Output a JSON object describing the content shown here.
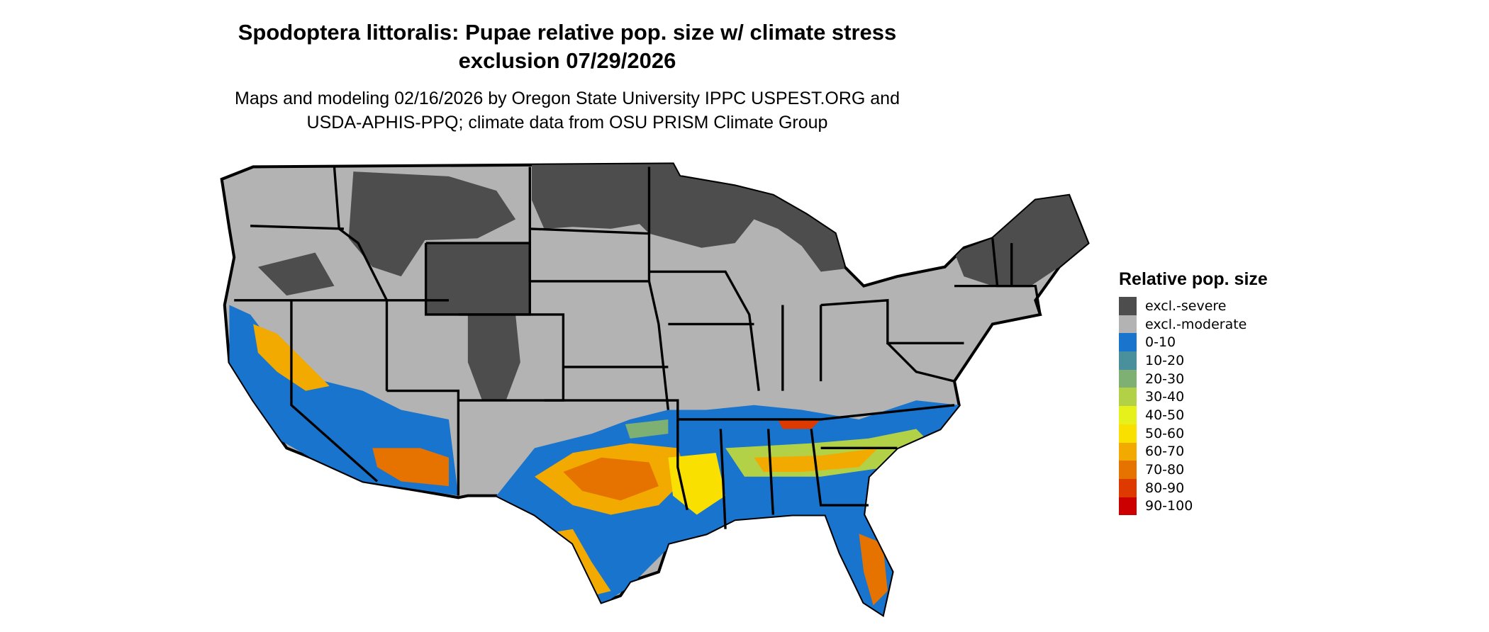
{
  "title_line1": "Spodoptera littoralis: Pupae relative pop. size w/ climate stress",
  "title_line2": "exclusion 07/29/2026",
  "subtitle_line1": "Maps and modeling 02/16/2026 by Oregon State University IPPC USPEST.ORG and",
  "subtitle_line2": "USDA-APHIS-PPQ; climate data from OSU PRISM Climate Group",
  "legend": {
    "title": "Relative pop. size",
    "items": [
      {
        "label": "excl.-severe",
        "color": "#4d4d4d"
      },
      {
        "label": "excl.-moderate",
        "color": "#b3b3b3"
      },
      {
        "label": "0-10",
        "color": "#1874cd"
      },
      {
        "label": "10-20",
        "color": "#4a8f9c"
      },
      {
        "label": "20-30",
        "color": "#7db072"
      },
      {
        "label": "30-40",
        "color": "#b3d147"
      },
      {
        "label": "40-50",
        "color": "#e6f01a"
      },
      {
        "label": "50-60",
        "color": "#f9e000"
      },
      {
        "label": "60-70",
        "color": "#f2a900"
      },
      {
        "label": "70-80",
        "color": "#e67300"
      },
      {
        "label": "80-90",
        "color": "#de3a00"
      },
      {
        "label": "90-100",
        "color": "#cc0000"
      }
    ]
  }
}
